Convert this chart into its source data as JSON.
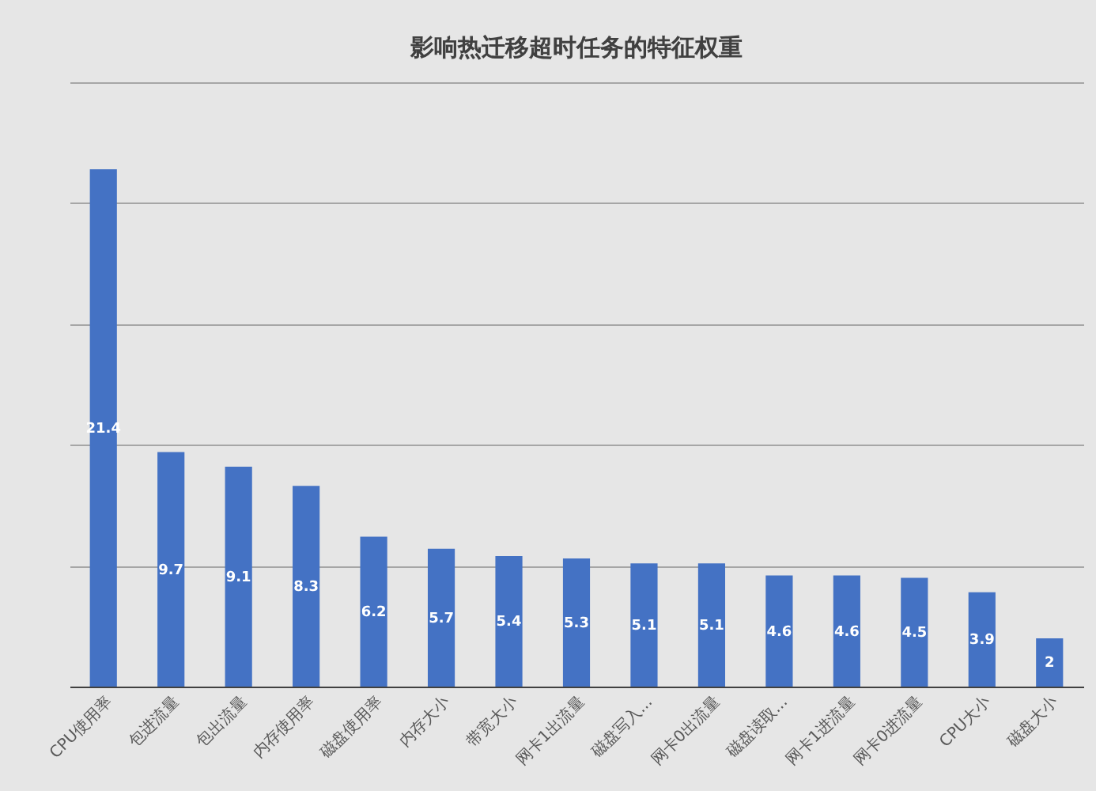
{
  "chart_data": {
    "type": "bar",
    "title": "影响热迁移超时任务的特征权重",
    "categories": [
      "CPU使用率",
      "包进流量",
      "包出流量",
      "内存使用率",
      "磁盘使用率",
      "内存大小",
      "带宽大小",
      "网卡1出流量",
      "磁盘写入...",
      "网卡0出流量",
      "磁盘读取...",
      "网卡1进流量",
      "网卡0进流量",
      "CPU大小",
      "磁盘大小"
    ],
    "values": [
      21.4,
      9.7,
      9.1,
      8.3,
      6.2,
      5.7,
      5.4,
      5.3,
      5.1,
      5.1,
      4.6,
      4.6,
      4.5,
      3.9,
      2
    ],
    "color": "#4472c4",
    "ylim": [
      0,
      25
    ],
    "yticks": [
      {
        "value": 0,
        "label": null
      },
      {
        "value": 5,
        "label": null
      },
      {
        "value": 10,
        "label": null
      },
      {
        "value": 15,
        "label": null
      },
      {
        "value": 20,
        "label": null
      },
      {
        "value": 25,
        "label": null
      }
    ],
    "grid": "y",
    "tick_labels": "x",
    "data_labels": true
  }
}
